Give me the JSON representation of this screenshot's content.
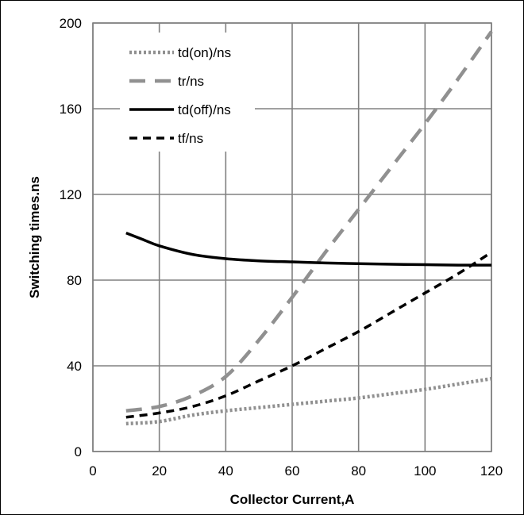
{
  "chart_data": {
    "type": "line",
    "xlabel": "Collector Current,A",
    "ylabel": "Switching times.ns",
    "xlim": [
      0,
      120
    ],
    "ylim": [
      0,
      200
    ],
    "xticks": [
      "0",
      "20",
      "40",
      "60",
      "80",
      "100",
      "120"
    ],
    "yticks": [
      "0",
      "40",
      "80",
      "120",
      "160",
      "200"
    ],
    "grid": true,
    "legend_position": "top-left",
    "series": [
      {
        "name": "td(on)/ns",
        "color": "#909090",
        "style": "dotted",
        "x": [
          10,
          20,
          30,
          40,
          50,
          60,
          70,
          80,
          90,
          100,
          110,
          120
        ],
        "y": [
          13,
          14,
          17,
          19,
          20.5,
          22,
          23.5,
          25,
          27,
          29,
          31.5,
          34
        ]
      },
      {
        "name": "tr/ns",
        "color": "#909090",
        "style": "dashed-long",
        "x": [
          10,
          20,
          30,
          40,
          50,
          60,
          70,
          80,
          90,
          100,
          110,
          120
        ],
        "y": [
          19,
          21,
          26,
          35,
          52,
          72,
          93,
          113,
          133,
          153,
          174,
          196
        ]
      },
      {
        "name": "td(off)/ns",
        "color": "#000000",
        "style": "solid",
        "x": [
          10,
          15,
          20,
          30,
          40,
          50,
          60,
          70,
          80,
          90,
          100,
          110,
          120
        ],
        "y": [
          102,
          99,
          96,
          92,
          90,
          89,
          88.5,
          88,
          87.7,
          87.4,
          87.2,
          87,
          87
        ]
      },
      {
        "name": "tf/ns",
        "color": "#000000",
        "style": "dashed-short",
        "x": [
          10,
          20,
          30,
          40,
          50,
          60,
          70,
          80,
          90,
          100,
          110,
          120
        ],
        "y": [
          16,
          18,
          21,
          26,
          33,
          40,
          48,
          56,
          65,
          74,
          83,
          93
        ]
      }
    ]
  }
}
